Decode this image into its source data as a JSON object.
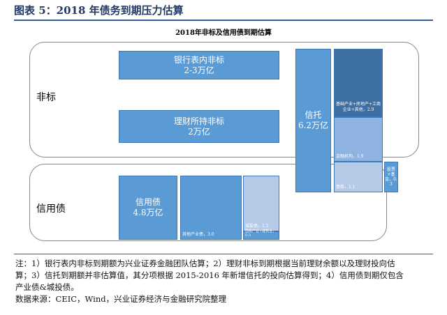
{
  "header": {
    "title": "图表 5：2018 年债务到期压力估算"
  },
  "subtitle": "2018年非标及信用债到期估算",
  "groups": [
    {
      "label": "非标"
    },
    {
      "label": "信用债"
    }
  ],
  "boxes": [
    {
      "lines": [
        "银行表内非标",
        "2-3万亿"
      ]
    },
    {
      "lines": [
        "理财所持非标",
        "2万亿"
      ]
    },
    {
      "lines": [
        "信托",
        "6.2万亿"
      ]
    },
    {
      "lines": [
        "基础产业+房地产+工商企业+其他，2.9"
      ]
    },
    {
      "lines": [
        "金融机构，1.9"
      ]
    },
    {
      "lines": [
        "债券，1.1"
      ]
    },
    {
      "lines": [
        "股票+基金，0.3"
      ]
    },
    {
      "lines": [
        "信用债",
        "4.8万亿"
      ]
    },
    {
      "lines": [
        "其他产业债，3.0"
      ]
    },
    {
      "lines": [
        "城投债，1.5"
      ]
    },
    {
      "lines": [
        "国有产业+建筑业，0.3"
      ]
    }
  ],
  "notes": {
    "lines": [
      "注：1）银行表内非标到期额为兴业证券金融团队估算；2）理财非标到期根据当前理财余额以及理财投向估",
      "算；3）信托到期额并非估算值，其分项根据 2015-2016 年新增信托的投向估算得到；4）信用债到期仅包含",
      "产业债&城投债。"
    ],
    "source": "数据来源：CEIC，Wind，兴业证券经济与金融研究院整理"
  }
}
